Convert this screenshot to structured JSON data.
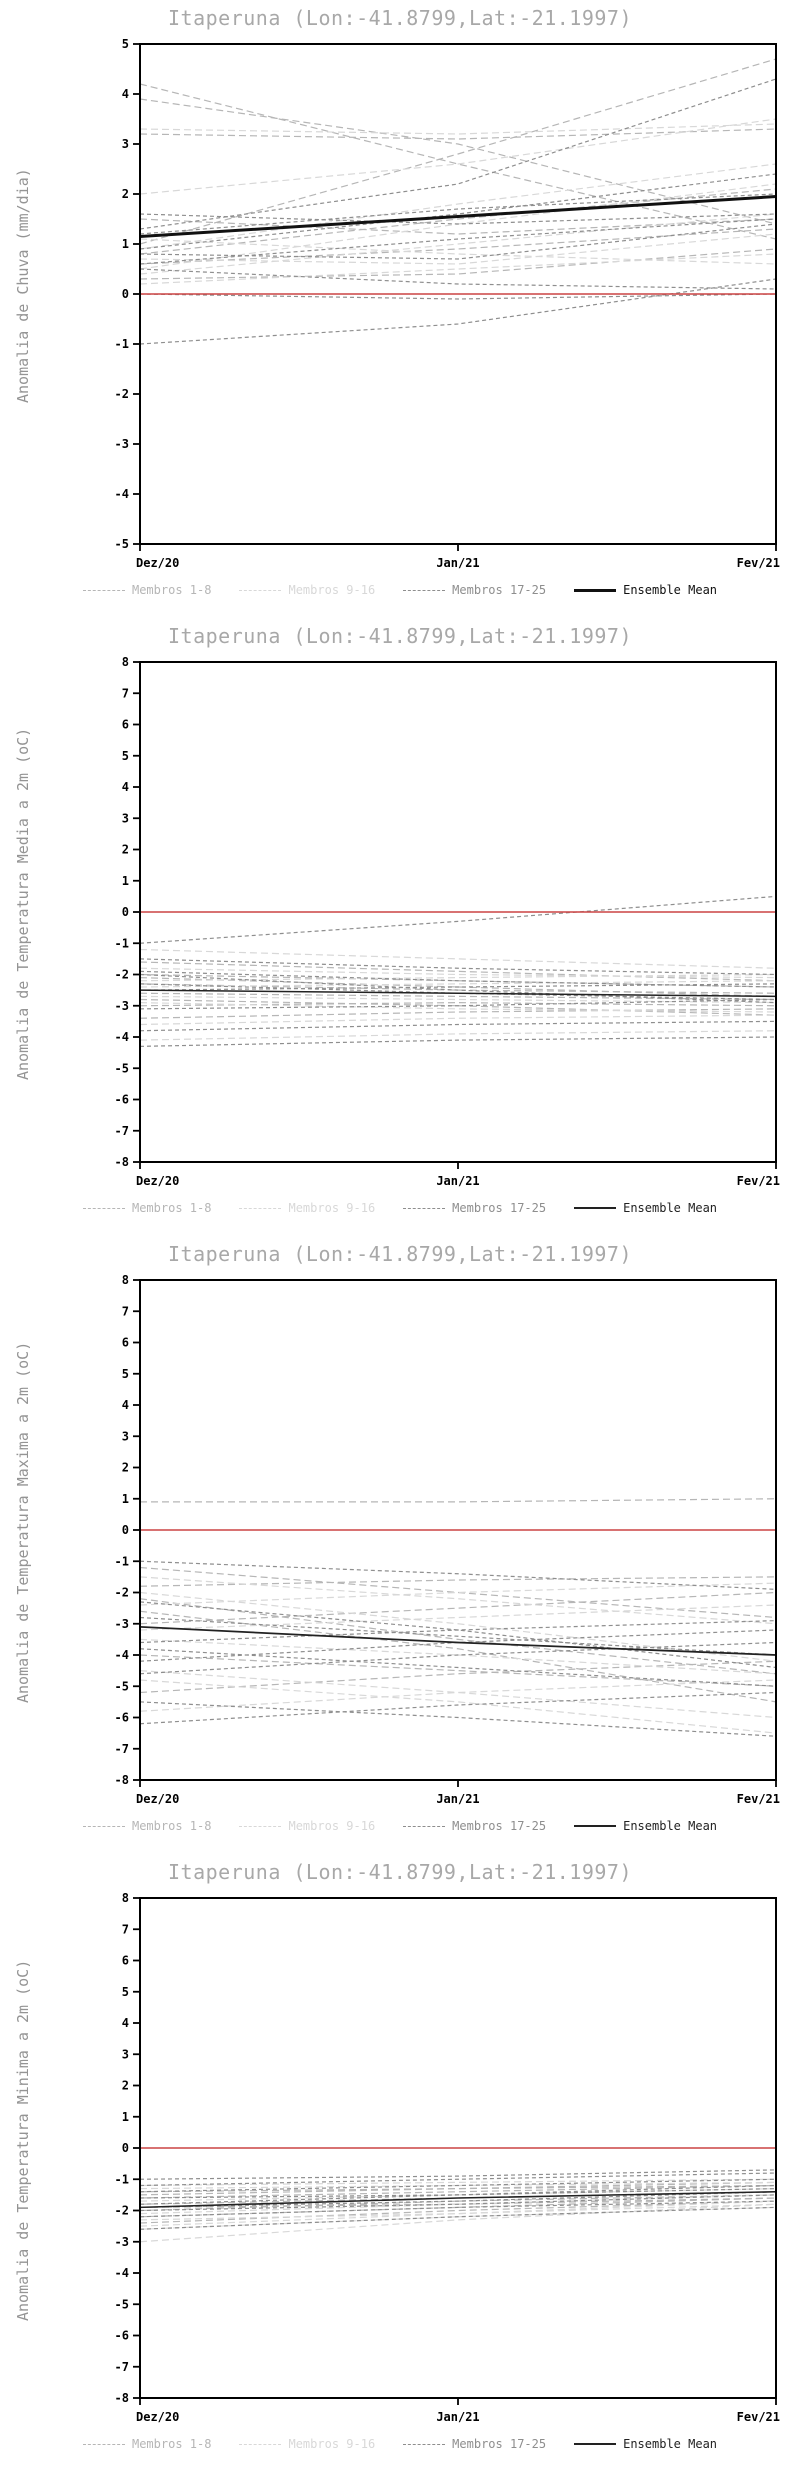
{
  "chart_data": [
    {
      "type": "line",
      "title": "Itaperuna (Lon:-41.8799,Lat:-21.1997)",
      "xlabel": "",
      "ylabel": "Anomalia de Chuva (mm/dia)",
      "ylim": [
        -5,
        5
      ],
      "ytick_step": 1,
      "x_labels": [
        "Dez/20",
        "Jan/21",
        "Fev/21"
      ],
      "grid": false,
      "legend_position": "bottom",
      "zero_line": {
        "color": "#cc4444",
        "values": [
          0,
          0,
          0
        ]
      },
      "ensemble_mean": {
        "label": "Ensemble Mean",
        "color": "#111111",
        "width": 3,
        "values": [
          1.15,
          1.55,
          1.95
        ]
      },
      "member_groups": [
        {
          "name": "Membros 1-8",
          "color": "#b6b6b6",
          "style": "dashed",
          "members": [
            [
              4.2,
              2.6,
              1.1
            ],
            [
              3.9,
              3.0,
              1.4
            ],
            [
              1.0,
              2.8,
              4.7
            ],
            [
              3.2,
              3.1,
              3.3
            ],
            [
              0.8,
              1.5,
              2.1
            ],
            [
              0.6,
              0.9,
              1.3
            ],
            [
              0.3,
              0.4,
              0.9
            ],
            [
              1.5,
              1.2,
              1.5
            ]
          ]
        },
        {
          "name": "Membros 9-16",
          "color": "#d8d8d8",
          "style": "dashed",
          "members": [
            [
              3.3,
              3.2,
              3.4
            ],
            [
              2.0,
              2.6,
              3.5
            ],
            [
              0.9,
              1.8,
              2.6
            ],
            [
              0.7,
              0.6,
              1.2
            ],
            [
              0.4,
              1.0,
              1.6
            ],
            [
              0.2,
              0.5,
              0.8
            ],
            [
              1.1,
              0.8,
              0.6
            ],
            [
              0.5,
              1.4,
              2.2
            ]
          ]
        },
        {
          "name": "Membros 17-25",
          "color": "#8e8e8e",
          "style": "shortdash",
          "members": [
            [
              -1.0,
              -0.6,
              0.3
            ],
            [
              0.0,
              -0.1,
              0.0
            ],
            [
              0.9,
              1.6,
              2.4
            ],
            [
              1.3,
              2.2,
              4.3
            ],
            [
              0.6,
              1.1,
              1.5
            ],
            [
              0.8,
              0.7,
              1.4
            ],
            [
              1.6,
              1.4,
              1.6
            ],
            [
              0.5,
              0.2,
              0.1
            ],
            [
              1.2,
              1.7,
              2.0
            ]
          ]
        }
      ],
      "legend": [
        {
          "label": "Membros 1-8",
          "color": "#b6b6b6",
          "line": "dashed",
          "weight": 1
        },
        {
          "label": "Membros 9-16",
          "color": "#d8d8d8",
          "line": "dashed",
          "weight": 1
        },
        {
          "label": "Membros 17-25",
          "color": "#8e8e8e",
          "line": "dashed",
          "weight": 1
        },
        {
          "label": "Ensemble Mean",
          "color": "#111111",
          "line": "solid",
          "weight": 3
        }
      ]
    },
    {
      "type": "line",
      "title": "Itaperuna (Lon:-41.8799,Lat:-21.1997)",
      "xlabel": "",
      "ylabel": "Anomalia de Temperatura Media a 2m (oC)",
      "ylim": [
        -8,
        8
      ],
      "ytick_step": 1,
      "x_labels": [
        "Dez/20",
        "Jan/21",
        "Fev/21"
      ],
      "grid": false,
      "legend_position": "bottom",
      "zero_line": {
        "color": "#cc4444",
        "values": [
          0,
          0,
          0
        ]
      },
      "ensemble_mean": {
        "label": "Ensemble Mean",
        "color": "#222222",
        "width": 1.6,
        "values": [
          -2.5,
          -2.6,
          -2.7
        ]
      },
      "member_groups": [
        {
          "name": "Membros 1-8",
          "color": "#b6b6b6",
          "style": "dashed",
          "members": [
            [
              -2.0,
              -2.2,
              -2.4
            ],
            [
              -2.3,
              -2.5,
              -2.6
            ],
            [
              -2.6,
              -2.7,
              -2.8
            ],
            [
              -3.0,
              -2.9,
              -3.0
            ],
            [
              -3.4,
              -3.2,
              -3.1
            ],
            [
              -1.6,
              -1.9,
              -2.2
            ],
            [
              -2.1,
              -2.4,
              -2.7
            ],
            [
              -2.8,
              -3.0,
              -3.3
            ]
          ]
        },
        {
          "name": "Membros 9-16",
          "color": "#d8d8d8",
          "style": "dashed",
          "members": [
            [
              -1.2,
              -1.5,
              -1.8
            ],
            [
              -1.8,
              -2.0,
              -2.1
            ],
            [
              -2.4,
              -2.3,
              -2.2
            ],
            [
              -2.9,
              -3.1,
              -3.2
            ],
            [
              -3.6,
              -3.4,
              -3.3
            ],
            [
              -4.1,
              -3.9,
              -3.8
            ],
            [
              -2.2,
              -2.1,
              -2.0
            ],
            [
              -2.7,
              -2.8,
              -2.9
            ]
          ]
        },
        {
          "name": "Membros 17-25",
          "color": "#8e8e8e",
          "style": "shortdash",
          "members": [
            [
              -1.0,
              -0.3,
              0.5
            ],
            [
              -1.5,
              -1.8,
              -2.0
            ],
            [
              -2.0,
              -2.5,
              -2.9
            ],
            [
              -2.5,
              -2.4,
              -2.3
            ],
            [
              -3.1,
              -3.0,
              -2.8
            ],
            [
              -3.8,
              -3.6,
              -3.5
            ],
            [
              -4.3,
              -4.1,
              -4.0
            ],
            [
              -2.3,
              -2.6,
              -2.8
            ],
            [
              -1.9,
              -2.2,
              -2.4
            ]
          ]
        }
      ],
      "legend": [
        {
          "label": "Membros 1-8",
          "color": "#b6b6b6",
          "line": "dashed",
          "weight": 1
        },
        {
          "label": "Membros 9-16",
          "color": "#d8d8d8",
          "line": "dashed",
          "weight": 1
        },
        {
          "label": "Membros 17-25",
          "color": "#8e8e8e",
          "line": "dashed",
          "weight": 1
        },
        {
          "label": "Ensemble Mean",
          "color": "#222222",
          "line": "solid",
          "weight": 2
        }
      ]
    },
    {
      "type": "line",
      "title": "Itaperuna (Lon:-41.8799,Lat:-21.1997)",
      "xlabel": "",
      "ylabel": "Anomalia de Temperatura Maxima a 2m (oC)",
      "ylim": [
        -8,
        8
      ],
      "ytick_step": 1,
      "x_labels": [
        "Dez/20",
        "Jan/21",
        "Fev/21"
      ],
      "grid": false,
      "legend_position": "bottom",
      "zero_line": {
        "color": "#cc4444",
        "values": [
          0,
          0,
          0
        ]
      },
      "ensemble_mean": {
        "label": "Ensemble Mean",
        "color": "#222222",
        "width": 1.8,
        "values": [
          -3.1,
          -3.6,
          -4.0
        ]
      },
      "member_groups": [
        {
          "name": "Membros 1-8",
          "color": "#b6b6b6",
          "style": "dashed",
          "members": [
            [
              0.9,
              0.9,
              1.0
            ],
            [
              -1.2,
              -2.0,
              -2.8
            ],
            [
              -2.2,
              -3.5,
              -4.6
            ],
            [
              -3.0,
              -2.5,
              -2.0
            ],
            [
              -4.0,
              -4.5,
              -5.0
            ],
            [
              -5.2,
              -4.6,
              -4.2
            ],
            [
              -2.6,
              -3.8,
              -5.5
            ],
            [
              -1.8,
              -1.6,
              -1.5
            ]
          ]
        },
        {
          "name": "Membros 9-16",
          "color": "#d8d8d8",
          "style": "dashed",
          "members": [
            [
              -1.5,
              -2.2,
              -3.0
            ],
            [
              -2.4,
              -2.0,
              -1.7
            ],
            [
              -3.5,
              -4.0,
              -4.6
            ],
            [
              -4.5,
              -5.2,
              -6.0
            ],
            [
              -5.8,
              -5.2,
              -4.8
            ],
            [
              -2.0,
              -3.0,
              -4.2
            ],
            [
              -3.2,
              -2.8,
              -2.4
            ],
            [
              -4.8,
              -5.5,
              -6.5
            ]
          ]
        },
        {
          "name": "Membros 17-25",
          "color": "#8e8e8e",
          "style": "shortdash",
          "members": [
            [
              -1.0,
              -1.4,
              -1.9
            ],
            [
              -2.8,
              -3.4,
              -4.0
            ],
            [
              -3.6,
              -3.2,
              -2.9
            ],
            [
              -4.2,
              -3.6,
              -3.2
            ],
            [
              -5.5,
              -6.0,
              -6.6
            ],
            [
              -6.2,
              -5.6,
              -5.2
            ],
            [
              -2.3,
              -3.2,
              -4.4
            ],
            [
              -3.8,
              -4.4,
              -5.0
            ],
            [
              -4.6,
              -4.0,
              -3.6
            ]
          ]
        }
      ],
      "legend": [
        {
          "label": "Membros 1-8",
          "color": "#b6b6b6",
          "line": "dashed",
          "weight": 1
        },
        {
          "label": "Membros 9-16",
          "color": "#d8d8d8",
          "line": "dashed",
          "weight": 1
        },
        {
          "label": "Membros 17-25",
          "color": "#8e8e8e",
          "line": "dashed",
          "weight": 1
        },
        {
          "label": "Ensemble Mean",
          "color": "#222222",
          "line": "solid",
          "weight": 2
        }
      ]
    },
    {
      "type": "line",
      "title": "Itaperuna (Lon:-41.8799,Lat:-21.1997)",
      "xlabel": "",
      "ylabel": "Anomalia de Temperatura Minima a 2m (oC)",
      "ylim": [
        -8,
        8
      ],
      "ytick_step": 1,
      "x_labels": [
        "Dez/20",
        "Jan/21",
        "Fev/21"
      ],
      "grid": false,
      "legend_position": "bottom",
      "zero_line": {
        "color": "#cc4444",
        "values": [
          0,
          0,
          0
        ]
      },
      "ensemble_mean": {
        "label": "Ensemble Mean",
        "color": "#222222",
        "width": 1.6,
        "values": [
          -1.9,
          -1.6,
          -1.4
        ]
      },
      "member_groups": [
        {
          "name": "Membros 1-8",
          "color": "#b6b6b6",
          "style": "dashed",
          "members": [
            [
              -1.6,
              -1.4,
              -1.2
            ],
            [
              -1.8,
              -1.6,
              -1.4
            ],
            [
              -2.0,
              -1.7,
              -1.5
            ],
            [
              -2.2,
              -1.9,
              -1.6
            ],
            [
              -1.4,
              -1.3,
              -1.2
            ],
            [
              -2.4,
              -2.0,
              -1.7
            ],
            [
              -1.9,
              -1.8,
              -1.6
            ],
            [
              -1.5,
              -1.3,
              -1.1
            ]
          ]
        },
        {
          "name": "Membros 9-16",
          "color": "#d8d8d8",
          "style": "dashed",
          "members": [
            [
              -3.0,
              -2.3,
              -1.8
            ],
            [
              -2.6,
              -2.2,
              -1.9
            ],
            [
              -1.2,
              -1.1,
              -1.0
            ],
            [
              -2.1,
              -1.8,
              -1.5
            ],
            [
              -1.7,
              -1.5,
              -1.3
            ],
            [
              -2.3,
              -2.1,
              -1.8
            ],
            [
              -1.3,
              -1.2,
              -1.1
            ],
            [
              -2.5,
              -2.1,
              -1.7
            ]
          ]
        },
        {
          "name": "Membros 17-25",
          "color": "#8e8e8e",
          "style": "shortdash",
          "members": [
            [
              -1.0,
              -0.9,
              -0.7
            ],
            [
              -1.6,
              -1.5,
              -1.3
            ],
            [
              -2.2,
              -1.9,
              -1.7
            ],
            [
              -1.8,
              -1.5,
              -1.2
            ],
            [
              -2.0,
              -1.8,
              -1.5
            ],
            [
              -1.4,
              -1.2,
              -1.0
            ],
            [
              -2.6,
              -2.2,
              -1.9
            ],
            [
              -1.2,
              -1.0,
              -0.8
            ],
            [
              -1.9,
              -1.7,
              -1.4
            ]
          ]
        }
      ],
      "legend": [
        {
          "label": "Membros 1-8",
          "color": "#b6b6b6",
          "line": "dashed",
          "weight": 1
        },
        {
          "label": "Membros 9-16",
          "color": "#d8d8d8",
          "line": "dashed",
          "weight": 1
        },
        {
          "label": "Membros 17-25",
          "color": "#8e8e8e",
          "line": "dashed",
          "weight": 1
        },
        {
          "label": "Ensemble Mean",
          "color": "#222222",
          "line": "solid",
          "weight": 2
        }
      ]
    }
  ]
}
